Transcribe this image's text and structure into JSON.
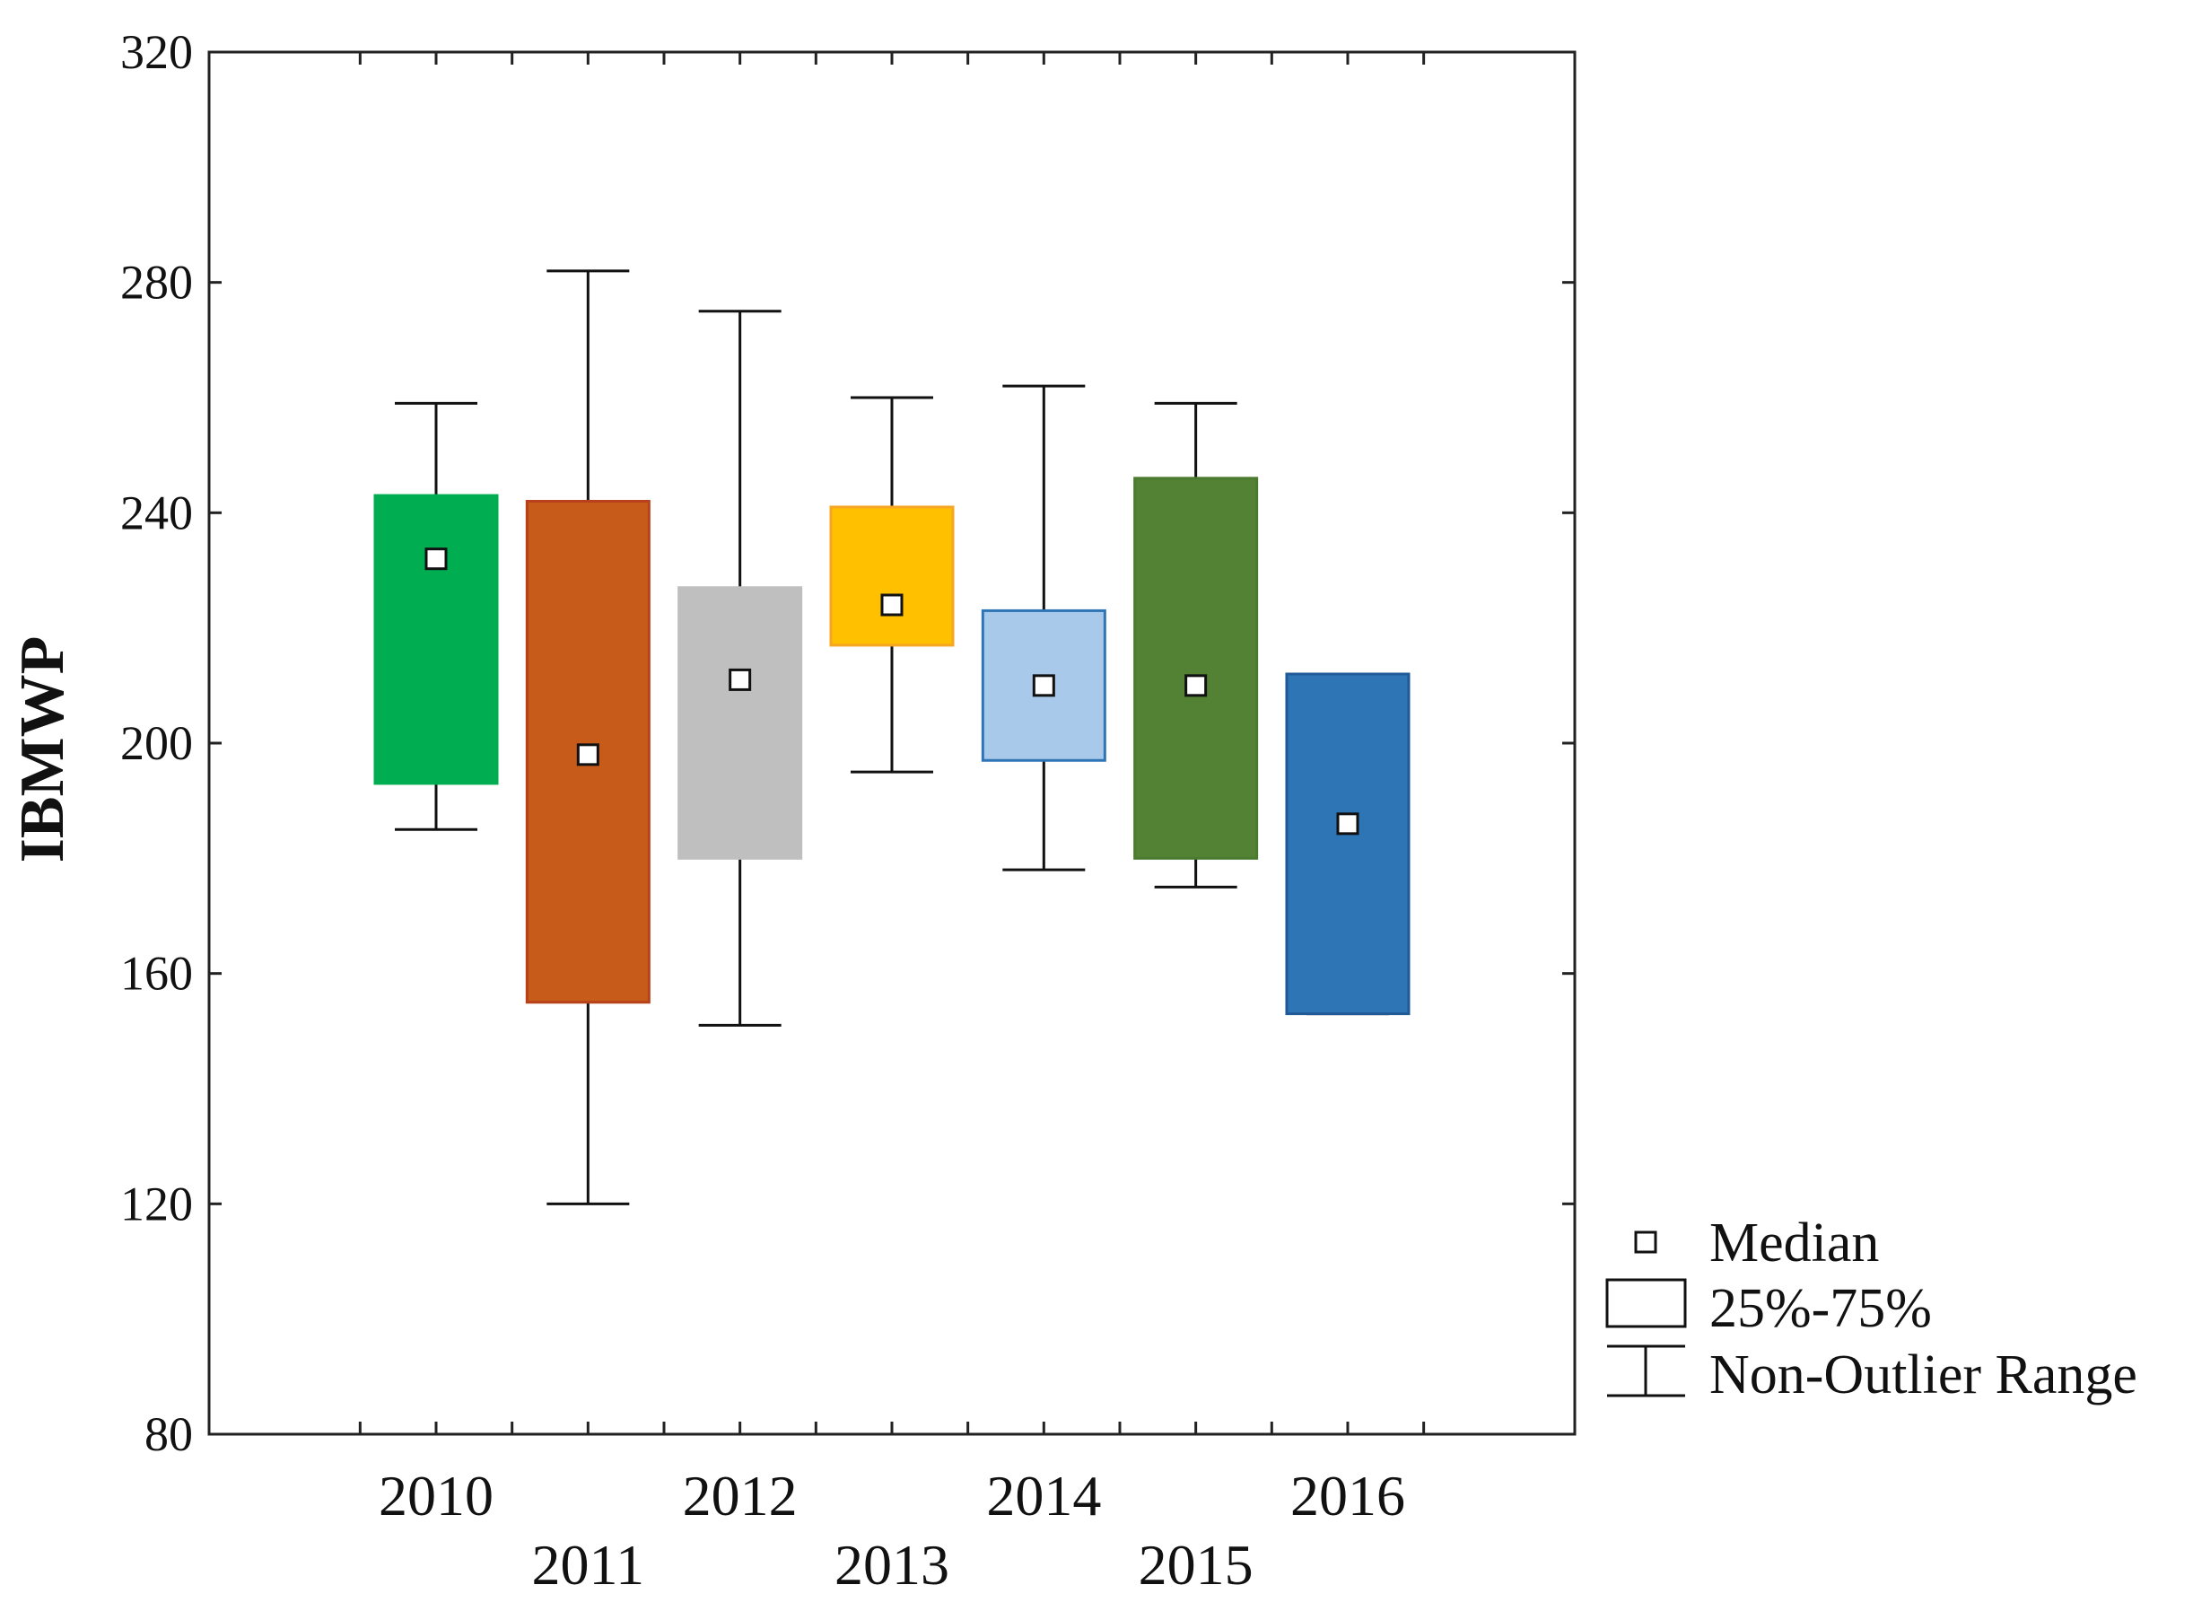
{
  "chart_data": {
    "type": "boxplot",
    "title": "",
    "xlabel": "",
    "ylabel": "IBMWP",
    "ylim": [
      80,
      320
    ],
    "yticks": [
      80,
      120,
      160,
      200,
      240,
      280,
      320
    ],
    "grid": false,
    "legend_position": "bottom-right-outside",
    "legend": {
      "median": "Median",
      "box": "25%-75%",
      "whisker": "Non-Outlier Range"
    },
    "categories": [
      "2010",
      "2011",
      "2012",
      "2013",
      "2014",
      "2015",
      "2016"
    ],
    "series": [
      {
        "name": "2010",
        "color": "#00AD50",
        "border": "#00AD50",
        "min": 185,
        "q1": 193,
        "median": 232,
        "q3": 243,
        "max": 259
      },
      {
        "name": "2011",
        "color": "#C75B19",
        "border": "#B8401A",
        "min": 120,
        "q1": 155,
        "median": 198,
        "q3": 242,
        "max": 282
      },
      {
        "name": "2012",
        "color": "#BFBFBF",
        "border": "#BFBFBF",
        "min": 151,
        "q1": 180,
        "median": 211,
        "q3": 227,
        "max": 275
      },
      {
        "name": "2013",
        "color": "#FFC000",
        "border": "#F5A623",
        "min": 195,
        "q1": 217,
        "median": 224,
        "q3": 241,
        "max": 260
      },
      {
        "name": "2014",
        "color": "#A9C9EA",
        "border": "#2E75B6",
        "min": 178,
        "q1": 197,
        "median": 210,
        "q3": 223,
        "max": 262
      },
      {
        "name": "2015",
        "color": "#548235",
        "border": "#4A7A2E",
        "min": 175,
        "q1": 180,
        "median": 210,
        "q3": 246,
        "max": 259
      },
      {
        "name": "2016",
        "color": "#2E75B6",
        "border": "#1F5A96",
        "min": 153,
        "q1": 153,
        "median": 186,
        "q3": 212,
        "max": 212
      }
    ]
  }
}
